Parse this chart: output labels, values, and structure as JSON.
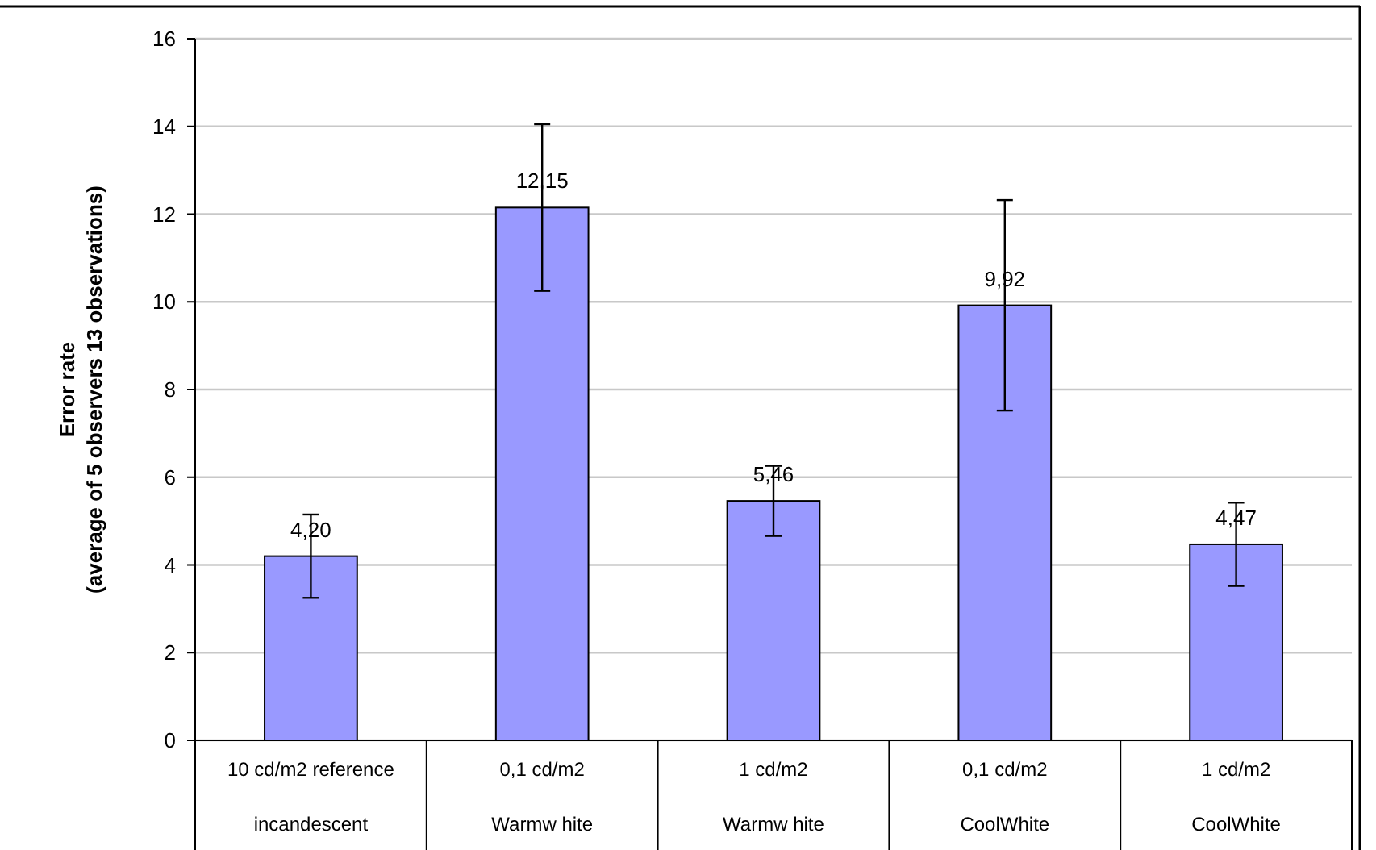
{
  "chart_data": {
    "type": "bar",
    "ylabel": "Error rate\n(average of 5 observers 13 observations)",
    "categories": [
      "10 cd/m2 reference\nincandescent",
      "0,1 cd/m2\nWarmw hite",
      "1 cd/m2\nWarmw hite",
      "0,1 cd/m2\nCoolWhite",
      "1 cd/m2\nCoolWhite"
    ],
    "values": [
      4.2,
      12.15,
      5.46,
      9.92,
      4.47
    ],
    "value_labels": [
      "4,20",
      "12,15",
      "5,46",
      "9,92",
      "4,47"
    ],
    "errors": [
      0.95,
      1.9,
      0.8,
      2.4,
      0.95
    ],
    "color": "#9999ff",
    "ylim": [
      0,
      16
    ],
    "yticks": [
      0,
      2,
      4,
      6,
      8,
      10,
      12,
      14,
      16
    ],
    "grid": "y"
  }
}
